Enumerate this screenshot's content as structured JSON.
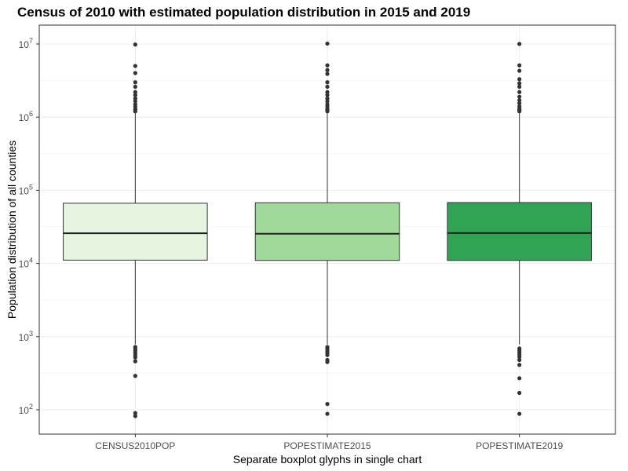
{
  "chart_data": {
    "type": "boxplot",
    "title": "Census of 2010 with estimated population distribution in 2015 and 2019",
    "xlabel": "Separate boxplot glyphs in single chart",
    "ylabel": "Population distribution of all counties",
    "y_scale": "log10",
    "ylim": [
      70,
      13000000
    ],
    "y_ticks": [
      {
        "value": 100,
        "base": "10",
        "exp": "2"
      },
      {
        "value": 1000,
        "base": "10",
        "exp": "3"
      },
      {
        "value": 10000,
        "base": "10",
        "exp": "4"
      },
      {
        "value": 100000,
        "base": "10",
        "exp": "5"
      },
      {
        "value": 1000000,
        "base": "10",
        "exp": "6"
      },
      {
        "value": 10000000,
        "base": "10",
        "exp": "7"
      }
    ],
    "grid": true,
    "legend": "none",
    "categories": [
      "CENSUS2010POP",
      "POPESTIMATE2015",
      "POPESTIMATE2019"
    ],
    "boxes": [
      {
        "category": "CENSUS2010POP",
        "fill": "#e5f5e0",
        "q1": 11100,
        "median": 25900,
        "q3": 66500,
        "whisker_low": 780,
        "whisker_high": 1150000,
        "outliers_high": [
          9820000,
          5000000,
          4000000,
          3000000,
          2600000,
          2200000,
          2000000,
          1800000,
          1650000,
          1500000,
          1400000,
          1300000,
          1250000,
          1200000
        ],
        "outliers_low": [
          720,
          680,
          640,
          600,
          560,
          520,
          460,
          290,
          90,
          82
        ]
      },
      {
        "category": "POPESTIMATE2015",
        "fill": "#a1d99b",
        "q1": 11000,
        "median": 25500,
        "q3": 67500,
        "whisker_low": 780,
        "whisker_high": 1150000,
        "outliers_high": [
          10100000,
          5100000,
          4400000,
          3900000,
          3000000,
          2600000,
          2200000,
          2000000,
          1800000,
          1650000,
          1500000,
          1400000,
          1300000,
          1250000,
          1200000
        ],
        "outliers_low": [
          720,
          680,
          640,
          600,
          560,
          480,
          450,
          120,
          88
        ]
      },
      {
        "category": "POPESTIMATE2019",
        "fill": "#31a354",
        "q1": 11000,
        "median": 26000,
        "q3": 68000,
        "whisker_low": 780,
        "whisker_high": 1150000,
        "outliers_high": [
          10000000,
          5100000,
          4300000,
          3300000,
          2900000,
          2600000,
          2200000,
          1900000,
          1700000,
          1550000,
          1400000,
          1300000,
          1250000,
          1200000
        ],
        "outliers_low": [
          690,
          650,
          610,
          570,
          530,
          480,
          410,
          270,
          170,
          88
        ]
      }
    ]
  }
}
